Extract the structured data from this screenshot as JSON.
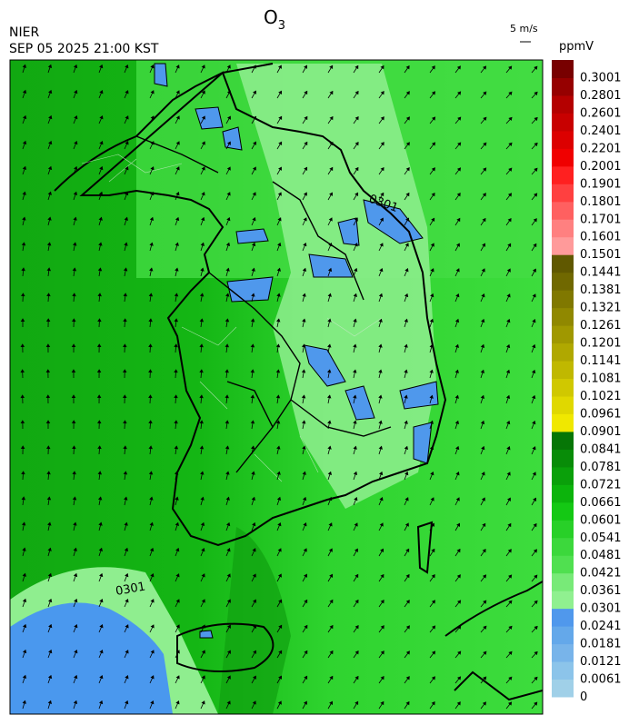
{
  "header": {
    "agency": "NIER",
    "datetime": "SEP 05 2025 21:00 KST",
    "title": {
      "main": "O",
      "subscript": "3"
    },
    "wind_scale": "5 m/s"
  },
  "colorbar": {
    "unit": "ppmV",
    "levels": [
      0,
      0.0061,
      0.0121,
      0.0181,
      0.0241,
      0.0301,
      0.0361,
      0.0421,
      0.0481,
      0.0541,
      0.0601,
      0.0661,
      0.0721,
      0.0781,
      0.0841,
      0.0901,
      0.0961,
      0.1021,
      0.1081,
      0.1141,
      0.1201,
      0.1261,
      0.1321,
      0.1381,
      0.1441,
      0.1501,
      0.1601,
      0.1701,
      0.1801,
      0.1901,
      0.2001,
      0.2201,
      0.2401,
      0.2601,
      0.2801,
      0.3001
    ],
    "colors": [
      "#a0d0e8",
      "#8cc4ea",
      "#78b4ea",
      "#64a8ea",
      "#5098ec",
      "#90f090",
      "#78ea78",
      "#50e050",
      "#3cd83c",
      "#28d028",
      "#14c814",
      "#0cb40c",
      "#0aa00a",
      "#088c08",
      "#067606",
      "#f0e800",
      "#e0d800",
      "#d0c800",
      "#c0b800",
      "#b0a800",
      "#a09800",
      "#908800",
      "#807800",
      "#706800",
      "#605800",
      "#ff9a9a",
      "#ff8080",
      "#ff6060",
      "#ff4040",
      "#ff2020",
      "#f00000",
      "#dc0000",
      "#c80000",
      "#b40000",
      "#960000",
      "#780000"
    ]
  },
  "contour_labels": [
    "0301",
    "0301"
  ]
}
